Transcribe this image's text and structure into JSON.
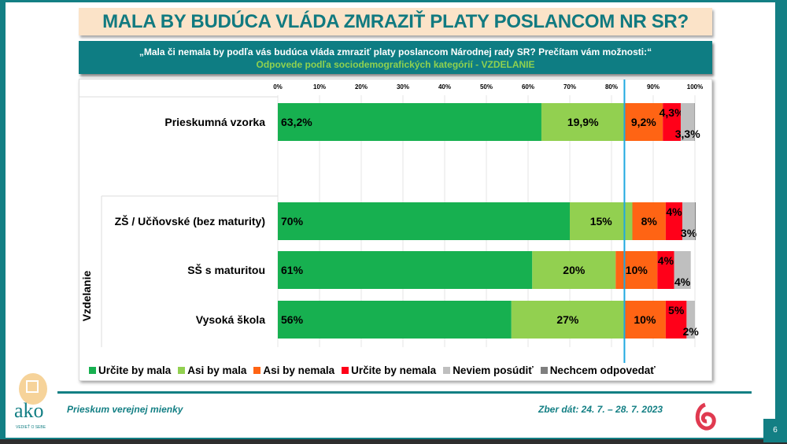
{
  "title": "MALA BY BUDÚCA VLÁDA ZMRAZIŤ PLATY POSLANCOM NR SR?",
  "question": "„Mala či nemala by podľa vás budúca vláda zmraziť platy poslancom Národnej rady SR? Prečítam vám možnosti:“",
  "subtitle": "Odpovede podľa sociodemografických kategórií - VZDELANIE",
  "footer": {
    "left": "Prieskum verejnej mienky",
    "right": "Zber dát: 24. 7. – 28. 7. 2023",
    "page": "6",
    "logo_text": "ako",
    "logo_tagline": "VEDIEŤ O SEBE"
  },
  "chart_data": {
    "type": "bar",
    "orientation": "horizontal-stacked-100",
    "group_label": "Vzdelanie",
    "categories": [
      "Prieskumná vzorka",
      "ZŠ / Učňovské (bez maturity)",
      "SŠ s maturitou",
      "Vysoká škola"
    ],
    "xlim": [
      0,
      100
    ],
    "ticks": [
      "0%",
      "10%",
      "20%",
      "30%",
      "40%",
      "50%",
      "60%",
      "70%",
      "80%",
      "90%",
      "100%"
    ],
    "reference_line": 83.1,
    "legend_position": "bottom",
    "series": [
      {
        "name": "Určite by mala",
        "color": "#17b050",
        "values": [
          63.2,
          70,
          61,
          56
        ],
        "labels": [
          "63,2%",
          "70%",
          "61%",
          "56%"
        ]
      },
      {
        "name": "Asi by mala",
        "color": "#92d050",
        "values": [
          19.9,
          15,
          20,
          27
        ],
        "labels": [
          "19,9%",
          "15%",
          "20%",
          "27%"
        ]
      },
      {
        "name": "Asi by nemala",
        "color": "#ff6414",
        "values": [
          9.2,
          8,
          10,
          10
        ],
        "labels": [
          "9,2%",
          "8%",
          "10%",
          "10%"
        ]
      },
      {
        "name": "Určite by nemala",
        "color": "#ff0019",
        "values": [
          4.3,
          4,
          4,
          5
        ],
        "labels": [
          "4,3%",
          "4%",
          "4%",
          "5%"
        ]
      },
      {
        "name": "Neviem posúdiť",
        "color": "#bfbfbf",
        "values": [
          3.3,
          3,
          4,
          2
        ],
        "labels": [
          "3,3%",
          "3%",
          "4%",
          "2%"
        ]
      },
      {
        "name": "Nechcem odpovedať",
        "color": "#7f7f7f",
        "values": [
          0.1,
          0.2,
          0,
          0
        ],
        "labels": [
          "",
          "",
          "",
          ""
        ]
      }
    ]
  }
}
